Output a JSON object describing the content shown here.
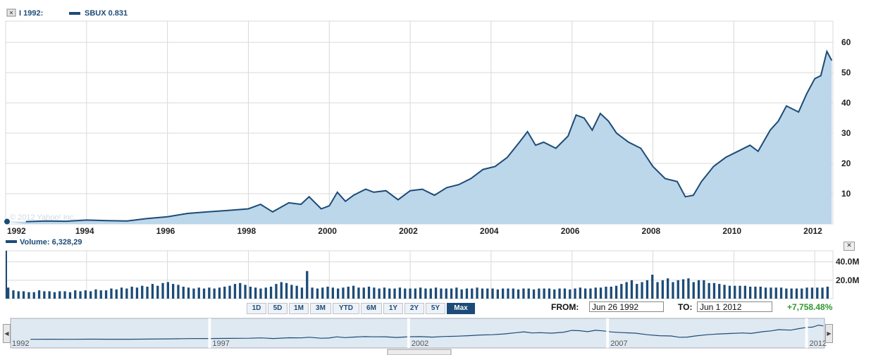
{
  "legend": {
    "compare_label": "I 1992:",
    "series_label": "SBUX 0.831 ",
    "volume_label": "Volume: 6,328,29"
  },
  "watermark": "© 2012 Yahoo! Inc.",
  "controls": {
    "ranges": [
      "1D",
      "5D",
      "1M",
      "3M",
      "YTD",
      "6M",
      "1Y",
      "2Y",
      "5Y",
      "Max"
    ],
    "active_range": "Max",
    "from_label": "FROM:",
    "from_value": "Jun 26 1992",
    "to_label": "TO:",
    "to_value": "Jun 1 2012",
    "change": "+7,758.48%"
  },
  "navigator": {
    "year_labels": [
      "1992",
      "1997",
      "2002",
      "2007",
      "2012"
    ]
  },
  "colors": {
    "line": "#1c4b77",
    "fill": "#bcd6ea",
    "grid": "#d9d9d9",
    "volume": "#1c4b77",
    "positive": "#2e9a2e"
  },
  "chart_data": [
    {
      "type": "area",
      "series": [
        {
          "name": "SBUX",
          "x": [
            1992.5,
            1993.0,
            1993.5,
            1994.0,
            1994.5,
            1995.0,
            1995.5,
            1996.0,
            1996.5,
            1997.0,
            1997.5,
            1998.0,
            1998.3,
            1998.6,
            1999.0,
            1999.3,
            1999.5,
            1999.8,
            2000.0,
            2000.2,
            2000.4,
            2000.6,
            2000.9,
            2001.1,
            2001.4,
            2001.7,
            2002.0,
            2002.3,
            2002.6,
            2002.9,
            2003.2,
            2003.5,
            2003.8,
            2004.1,
            2004.4,
            2004.7,
            2004.9,
            2005.1,
            2005.3,
            2005.6,
            2005.9,
            2006.1,
            2006.3,
            2006.5,
            2006.7,
            2006.9,
            2007.1,
            2007.4,
            2007.7,
            2008.0,
            2008.3,
            2008.6,
            2008.8,
            2009.0,
            2009.2,
            2009.5,
            2009.8,
            2010.1,
            2010.4,
            2010.6,
            2010.9,
            2011.1,
            2011.3,
            2011.6,
            2011.8,
            2012.0,
            2012.15,
            2012.3,
            2012.42
          ],
          "values": [
            0.8,
            1.0,
            0.9,
            1.3,
            1.1,
            1.0,
            1.8,
            2.4,
            3.5,
            4.0,
            4.5,
            5.0,
            6.5,
            4.0,
            7.0,
            6.5,
            9.0,
            5.0,
            6.0,
            10.5,
            7.5,
            9.5,
            11.5,
            10.5,
            11.0,
            8.0,
            11.0,
            11.5,
            9.5,
            12.0,
            13.0,
            15.0,
            18.0,
            19.0,
            22.0,
            27.0,
            30.5,
            26.0,
            27.0,
            25.0,
            29.0,
            36.0,
            35.0,
            31.0,
            36.5,
            34.0,
            30.0,
            27.0,
            25.0,
            19.0,
            15.0,
            14.0,
            9.0,
            9.5,
            14.0,
            19.0,
            22.0,
            24.0,
            26.0,
            24.0,
            31.0,
            34.0,
            39.0,
            37.0,
            43.0,
            48.0,
            49.0,
            57.0,
            54.0
          ]
        }
      ],
      "x_tick_labels": [
        "1992",
        "1994",
        "1996",
        "1998",
        "2000",
        "2002",
        "2004",
        "2006",
        "2008",
        "2010",
        "2012"
      ],
      "y_ticks": [
        10,
        20,
        30,
        40,
        50,
        60
      ],
      "ylim": [
        0,
        67
      ],
      "xlim": [
        1992.0,
        2012.45
      ],
      "grid": true,
      "legend_position": "top-left"
    },
    {
      "type": "bar",
      "series": [
        {
          "name": "Volume",
          "x_range": [
            1992.0,
            2012.45
          ],
          "values": [
            12,
            9,
            8,
            8,
            7,
            7,
            9,
            8,
            8,
            7,
            8,
            8,
            7,
            9,
            8,
            9,
            8,
            10,
            9,
            9,
            11,
            10,
            12,
            11,
            13,
            12,
            14,
            13,
            16,
            14,
            17,
            18,
            16,
            15,
            13,
            12,
            11,
            12,
            11,
            12,
            11,
            12,
            13,
            14,
            16,
            17,
            15,
            13,
            12,
            11,
            12,
            13,
            16,
            18,
            17,
            15,
            14,
            12,
            30,
            12,
            11,
            12,
            13,
            12,
            11,
            12,
            13,
            14,
            12,
            12,
            13,
            12,
            11,
            12,
            11,
            11,
            12,
            11,
            11,
            11,
            12,
            11,
            11,
            12,
            11,
            11,
            11,
            12,
            10,
            11,
            11,
            12,
            11,
            11,
            11,
            10,
            11,
            11,
            11,
            10,
            11,
            11,
            10,
            11,
            11,
            11,
            10,
            11,
            11,
            10,
            11,
            12,
            11,
            11,
            12,
            12,
            13,
            13,
            14,
            16,
            18,
            20,
            16,
            18,
            20,
            26,
            18,
            20,
            22,
            18,
            20,
            21,
            22,
            18,
            20,
            20,
            17,
            17,
            16,
            15,
            14,
            14,
            14,
            14,
            13,
            13,
            13,
            12,
            12,
            12,
            12,
            11,
            11,
            11,
            11,
            12,
            12,
            12,
            12,
            13
          ]
        }
      ],
      "y_tick_labels": [
        "20.0M",
        "40.0M"
      ],
      "ylim": [
        0,
        52
      ],
      "legend_position": "top-left"
    }
  ]
}
